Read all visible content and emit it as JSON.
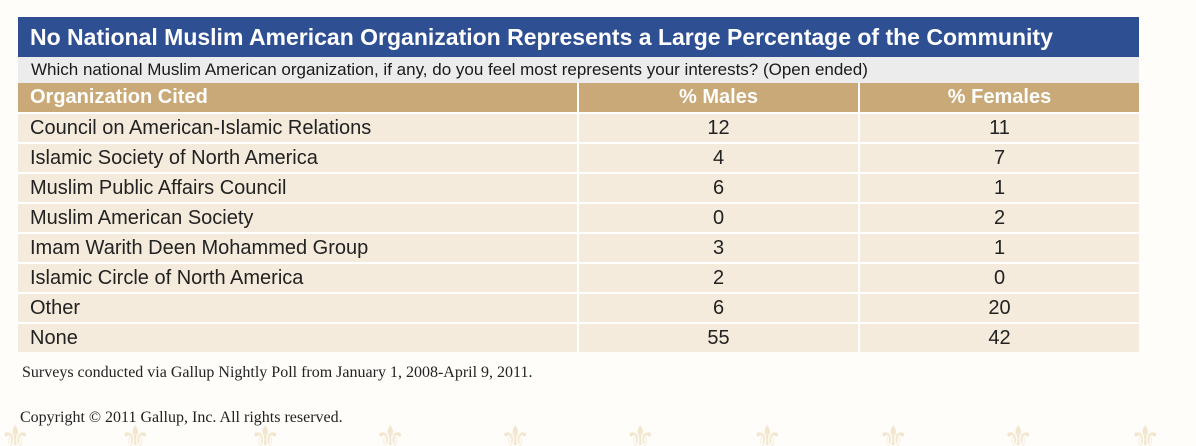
{
  "chart_data": {
    "type": "table",
    "title": "No National Muslim American Organization Represents a Large Percentage of the Community",
    "subtitle": "Which national Muslim American organization, if any, do you feel most represents your interests? (Open ended)",
    "columns": [
      "Organization Cited",
      "% Males",
      "% Females"
    ],
    "rows": [
      {
        "organization": "Council on American-Islamic Relations",
        "males": "12",
        "females": "11"
      },
      {
        "organization": "Islamic Society of North America",
        "males": "4",
        "females": "7"
      },
      {
        "organization": "Muslim Public Affairs Council",
        "males": "6",
        "females": "1"
      },
      {
        "organization": "Muslim American Society",
        "males": "0",
        "females": "2"
      },
      {
        "organization": "Imam Warith Deen Mohammed Group",
        "males": "3",
        "females": "1"
      },
      {
        "organization": "Islamic Circle of North America",
        "males": "2",
        "females": "0"
      },
      {
        "organization": "Other",
        "males": "6",
        "females": "20"
      },
      {
        "organization": "None",
        "males": "55",
        "females": "42"
      }
    ],
    "note": "Surveys conducted via Gallup Nightly Poll from January 1, 2008-April 9, 2011."
  },
  "footer": {
    "copyright": "Copyright © 2011 Gallup, Inc. All rights reserved."
  },
  "colors": {
    "title_bar": "#2f4f93",
    "subtitle_bar": "#ececec",
    "header_row": "#c9a977",
    "body_row": "#f5ebdc"
  },
  "decoration": {
    "watermark_icon": "fleur-de-lis-icon",
    "watermark_glyph": "⚜"
  }
}
